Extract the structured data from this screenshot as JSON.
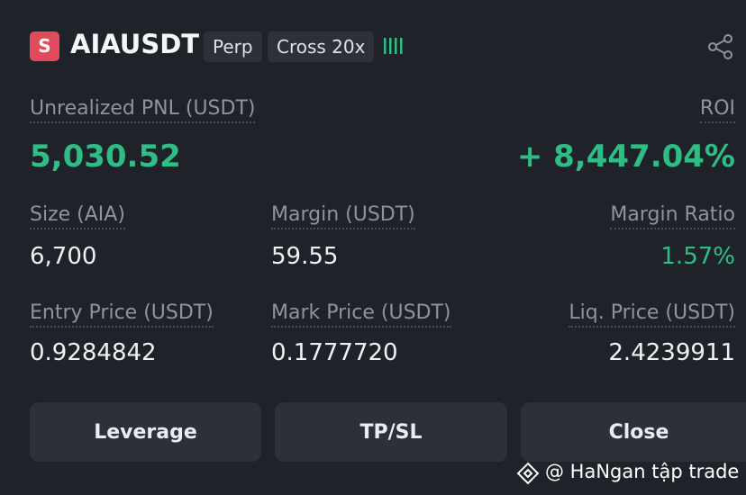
{
  "header": {
    "badge": "S",
    "symbol": "AIAUSDT",
    "type_tag": "Perp",
    "margin_tag": "Cross 20x"
  },
  "pnl": {
    "label": "Unrealized PNL (USDT)",
    "value": "5,030.52",
    "roi_label": "ROI",
    "roi_value": "+ 8,447.04%"
  },
  "fields": [
    {
      "label": "Size (AIA)",
      "value": "6,700"
    },
    {
      "label": "Margin (USDT)",
      "value": "59.55"
    },
    {
      "label": "Margin Ratio",
      "value": "1.57%"
    },
    {
      "label": "Entry Price (USDT)",
      "value": "0.9284842"
    },
    {
      "label": "Mark Price (USDT)",
      "value": "0.1777720"
    },
    {
      "label": "Liq. Price (USDT)",
      "value": "2.4239911"
    }
  ],
  "buttons": [
    "Leverage",
    "TP/SL",
    "Close"
  ],
  "watermark": "@ HaNgan tập trade"
}
